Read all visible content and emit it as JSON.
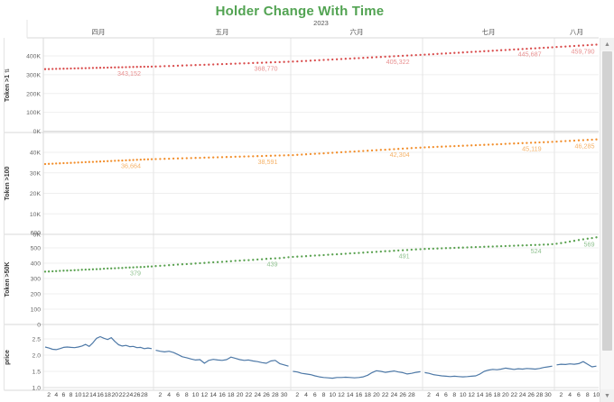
{
  "title": "Holder Change With Time",
  "scrollbar": {
    "up_glyph": "▲",
    "down_glyph": "▼"
  },
  "chart_data": {
    "type": "line",
    "title": "Holder Change With Time",
    "grid": true,
    "x_axis": {
      "year_label": "2023",
      "months": [
        {
          "label": "四月",
          "days_in_view": 30,
          "tick_labels": [
            2,
            4,
            6,
            8,
            10,
            12,
            14,
            16,
            18,
            20,
            22,
            24,
            26,
            28
          ]
        },
        {
          "label": "五月",
          "days_in_view": 31,
          "tick_labels": [
            2,
            4,
            6,
            8,
            10,
            12,
            14,
            16,
            18,
            20,
            22,
            24,
            26,
            28,
            30
          ]
        },
        {
          "label": "六月",
          "days_in_view": 30,
          "tick_labels": [
            2,
            4,
            6,
            8,
            10,
            12,
            14,
            16,
            18,
            20,
            22,
            24,
            26,
            28
          ]
        },
        {
          "label": "七月",
          "days_in_view": 31,
          "tick_labels": [
            2,
            4,
            6,
            8,
            10,
            12,
            14,
            16,
            18,
            20,
            22,
            24,
            26,
            28,
            30
          ]
        },
        {
          "label": "八月",
          "days_in_view": 10,
          "tick_labels": [
            2,
            4,
            6,
            8,
            10
          ]
        }
      ]
    },
    "panels": [
      {
        "key": "token_gt1",
        "row_label": "Token >1",
        "sort_icon": "⇅",
        "style": "dotted",
        "color": "#d94c4c",
        "label_color": "#e89090",
        "y_tick_labels": [
          "0K",
          "100K",
          "200K",
          "300K",
          "400K"
        ],
        "y_tick_values": [
          0,
          100000,
          200000,
          300000,
          400000
        ],
        "ylim": [
          0,
          496000
        ],
        "end_labels": [
          "343,152",
          "368,770",
          "405,322",
          "445,687",
          "459,790"
        ],
        "values_by_month": [
          [
            329600,
            330100,
            330600,
            331000,
            331500,
            332000,
            332400,
            332900,
            333400,
            333900,
            334300,
            334800,
            335300,
            335700,
            336200,
            336700,
            337100,
            337600,
            338100,
            338500,
            339000,
            339500,
            340000,
            340400,
            340900,
            341400,
            341800,
            342300,
            342700,
            343152
          ],
          [
            343600,
            344400,
            345300,
            346100,
            347000,
            347800,
            348600,
            349500,
            350300,
            351200,
            352000,
            352800,
            353700,
            354500,
            355400,
            356200,
            357000,
            357900,
            358700,
            359600,
            360400,
            361200,
            362100,
            362900,
            363800,
            364600,
            365400,
            366300,
            367100,
            368000,
            368770
          ],
          [
            369700,
            370900,
            372200,
            373400,
            374600,
            375900,
            377100,
            378300,
            379600,
            380800,
            382000,
            383300,
            384500,
            385700,
            387000,
            388200,
            389400,
            390700,
            391900,
            393100,
            394400,
            395600,
            396800,
            398100,
            399300,
            400500,
            401800,
            403000,
            404200,
            405322
          ],
          [
            406600,
            407900,
            409200,
            410500,
            411800,
            413100,
            414400,
            415700,
            417000,
            418300,
            419600,
            420900,
            422200,
            423500,
            424800,
            426100,
            427400,
            428700,
            430000,
            431300,
            432600,
            433900,
            435200,
            436500,
            437800,
            439100,
            440400,
            441700,
            443000,
            444300,
            445687
          ],
          [
            447200,
            448600,
            450000,
            451400,
            452800,
            454200,
            455600,
            457000,
            458400,
            459790
          ]
        ]
      },
      {
        "key": "token_gt100",
        "row_label": "Token >100",
        "sort_icon": "",
        "style": "dotted",
        "color": "#f28e2b",
        "label_color": "#f5b268",
        "y_tick_labels": [
          "0K",
          "10K",
          "20K",
          "30K",
          "40K"
        ],
        "y_tick_values": [
          0,
          10000,
          20000,
          30000,
          40000
        ],
        "ylim": [
          0,
          49000
        ],
        "end_labels": [
          "36,664",
          "38,591",
          "42,304",
          "45,119",
          "46,285"
        ],
        "values_by_month": [
          [
            34300,
            34380,
            34460,
            34540,
            34630,
            34710,
            34790,
            34870,
            34950,
            35040,
            35120,
            35200,
            35280,
            35360,
            35450,
            35530,
            35610,
            35690,
            35770,
            35860,
            35940,
            36020,
            36100,
            36180,
            36270,
            36350,
            36430,
            36510,
            36590,
            36664
          ],
          [
            36700,
            36763,
            36826,
            36889,
            36952,
            37015,
            37078,
            37141,
            37204,
            37267,
            37330,
            37393,
            37456,
            37519,
            37582,
            37645,
            37708,
            37771,
            37834,
            37897,
            37960,
            38023,
            38086,
            38149,
            38212,
            38275,
            38338,
            38401,
            38464,
            38527,
            38591
          ],
          [
            38650,
            38776,
            38902,
            39028,
            39154,
            39280,
            39406,
            39532,
            39658,
            39784,
            39910,
            40036,
            40162,
            40288,
            40414,
            40540,
            40666,
            40792,
            40918,
            41044,
            41170,
            41296,
            41422,
            41548,
            41674,
            41800,
            41926,
            42052,
            42178,
            42304
          ],
          [
            42400,
            42490,
            42580,
            42670,
            42760,
            42850,
            42940,
            43030,
            43120,
            43210,
            43300,
            43390,
            43480,
            43570,
            43660,
            43750,
            43840,
            43930,
            44020,
            44110,
            44200,
            44290,
            44380,
            44470,
            44560,
            44650,
            44740,
            44830,
            44920,
            45010,
            45119
          ],
          [
            45250,
            45365,
            45480,
            45595,
            45710,
            45825,
            45940,
            46055,
            46170,
            46285
          ]
        ]
      },
      {
        "key": "token_gt50k",
        "row_label": "Token >50K",
        "sort_icon": "",
        "style": "dotted",
        "color": "#59a14f",
        "label_color": "#90c290",
        "y_tick_labels": [
          "0",
          "100",
          "200",
          "300",
          "400",
          "500",
          "600"
        ],
        "y_tick_values": [
          0,
          100,
          200,
          300,
          400,
          500,
          600
        ],
        "ylim": [
          0,
          610
        ],
        "end_labels": [
          "379",
          "439",
          "491",
          "524",
          "569"
        ],
        "values_by_month": [
          [
            345,
            346,
            347,
            348,
            350,
            351,
            352,
            353,
            354,
            355,
            357,
            358,
            359,
            360,
            361,
            362,
            364,
            365,
            366,
            367,
            368,
            369,
            371,
            372,
            373,
            374,
            375,
            376,
            378,
            379
          ],
          [
            381,
            383,
            385,
            387,
            389,
            391,
            393,
            394,
            396,
            398,
            400,
            402,
            404,
            406,
            407,
            409,
            411,
            413,
            415,
            417,
            419,
            420,
            422,
            424,
            426,
            428,
            430,
            432,
            433,
            436,
            439
          ],
          [
            441,
            443,
            444,
            446,
            448,
            450,
            451,
            453,
            455,
            457,
            458,
            460,
            462,
            464,
            465,
            467,
            469,
            471,
            472,
            474,
            476,
            478,
            479,
            481,
            483,
            485,
            486,
            488,
            490,
            491
          ],
          [
            493,
            494,
            495,
            496,
            497,
            498,
            499,
            500,
            501,
            502,
            503,
            504,
            505,
            506,
            507,
            508,
            509,
            510,
            511,
            512,
            513,
            514,
            515,
            516,
            517,
            518,
            519,
            520,
            521,
            522,
            524
          ],
          [
            527,
            531,
            536,
            541,
            546,
            551,
            556,
            560,
            564,
            569
          ]
        ]
      },
      {
        "key": "price",
        "row_label": "price",
        "sort_icon": "",
        "style": "solid",
        "color": "#4e79a7",
        "label_color": "#4e79a7",
        "y_tick_labels": [
          "1.0",
          "1.5",
          "2.0",
          "2.5"
        ],
        "y_tick_values": [
          1.0,
          1.5,
          2.0,
          2.5
        ],
        "ylim": [
          1.0,
          2.9
        ],
        "end_labels": [],
        "values_by_month": [
          [
            2.25,
            2.22,
            2.18,
            2.17,
            2.2,
            2.24,
            2.25,
            2.24,
            2.23,
            2.25,
            2.28,
            2.33,
            2.27,
            2.38,
            2.52,
            2.57,
            2.52,
            2.48,
            2.54,
            2.42,
            2.32,
            2.28,
            2.3,
            2.26,
            2.27,
            2.23,
            2.24,
            2.2,
            2.22,
            2.2
          ],
          [
            2.15,
            2.12,
            2.1,
            2.12,
            2.08,
            2.02,
            1.95,
            1.92,
            1.88,
            1.85,
            1.86,
            1.75,
            1.84,
            1.87,
            1.85,
            1.84,
            1.86,
            1.94,
            1.9,
            1.86,
            1.84,
            1.85,
            1.82,
            1.8,
            1.77,
            1.75,
            1.82,
            1.84,
            1.74,
            1.7,
            1.66
          ],
          [
            1.5,
            1.48,
            1.44,
            1.42,
            1.4,
            1.36,
            1.33,
            1.31,
            1.3,
            1.29,
            1.31,
            1.31,
            1.32,
            1.31,
            1.3,
            1.31,
            1.33,
            1.38,
            1.46,
            1.52,
            1.5,
            1.47,
            1.49,
            1.51,
            1.48,
            1.46,
            1.42,
            1.44,
            1.47,
            1.49
          ],
          [
            1.46,
            1.44,
            1.4,
            1.38,
            1.36,
            1.35,
            1.34,
            1.35,
            1.34,
            1.33,
            1.34,
            1.35,
            1.36,
            1.42,
            1.5,
            1.54,
            1.56,
            1.55,
            1.57,
            1.6,
            1.58,
            1.56,
            1.58,
            1.57,
            1.59,
            1.58,
            1.57,
            1.59,
            1.62,
            1.64,
            1.66
          ],
          [
            1.7,
            1.72,
            1.71,
            1.73,
            1.72,
            1.74,
            1.8,
            1.72,
            1.64,
            1.66
          ]
        ]
      }
    ]
  }
}
